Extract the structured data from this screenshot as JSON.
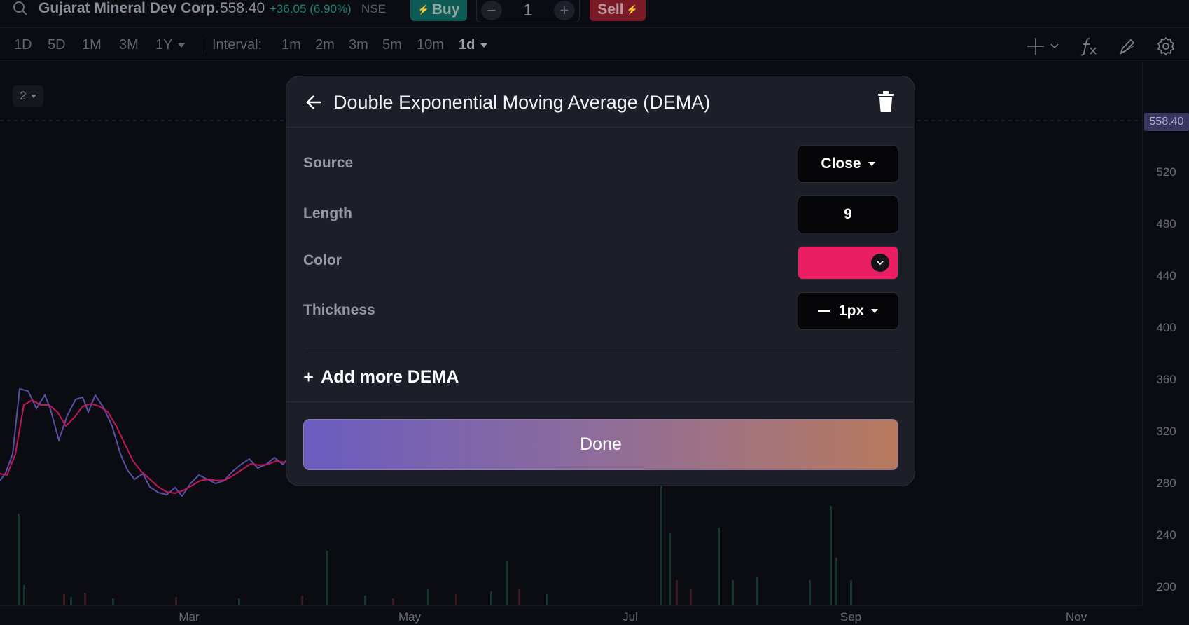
{
  "topbar": {
    "symbol_name": "Gujarat Mineral Dev Corp.",
    "price": "558.40",
    "change": "+36.05 (6.90%)",
    "exchange": "NSE",
    "buy_label": "Buy",
    "sell_label": "Sell",
    "quantity": "1",
    "minus_label": "−",
    "plus_label": "+"
  },
  "toolbar": {
    "ranges": [
      "1D",
      "5D",
      "1M",
      "3M",
      "1Y"
    ],
    "interval_label": "Interval:",
    "intervals": [
      "1m",
      "2m",
      "3m",
      "5m",
      "10m",
      "1d"
    ],
    "active_interval": "1d"
  },
  "chart": {
    "pane_badge": "2",
    "last_price": "558.40",
    "price_ticks": [
      "520",
      "480",
      "440",
      "400",
      "360",
      "320",
      "280",
      "240",
      "200"
    ],
    "time_ticks": [
      "Mar",
      "May",
      "Jul",
      "Sep",
      "Nov"
    ],
    "price_line_color": "#5b4ea8",
    "dema_line_color": "#c2185b"
  },
  "dialog": {
    "title": "Double Exponential Moving Average (DEMA)",
    "source_label": "Source",
    "source_value": "Close",
    "length_label": "Length",
    "length_value": "9",
    "color_label": "Color",
    "color_value": "#e91e63",
    "thickness_label": "Thickness",
    "thickness_value": "1px",
    "add_more_label": "Add more DEMA",
    "done_label": "Done"
  }
}
